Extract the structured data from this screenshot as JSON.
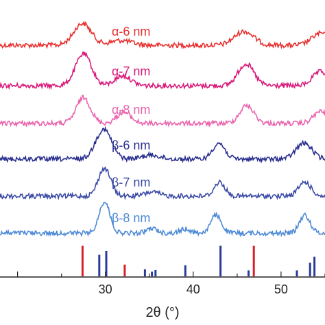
{
  "chart_data": {
    "type": "line",
    "title": "",
    "xlabel": "2θ (°)",
    "ylabel": "",
    "xlim": [
      18,
      55
    ],
    "xticks": [
      "30",
      "40",
      "50"
    ],
    "xtick_values": [
      30,
      40,
      50
    ],
    "grid": false,
    "legend": "inline labels",
    "series": [
      {
        "name": "α-6 nm",
        "color": "#e8302f",
        "peaks": [
          {
            "x": 27.4,
            "height": 0.55,
            "width": 1.0
          },
          {
            "x": 31.8,
            "height": 0.12,
            "width": 1.2
          },
          {
            "x": 45.8,
            "height": 0.35,
            "width": 1.1
          },
          {
            "x": 54.5,
            "height": 0.3,
            "width": 1.0
          }
        ]
      },
      {
        "name": "α-7 nm",
        "color": "#d9197a",
        "peaks": [
          {
            "x": 27.5,
            "height": 0.8,
            "width": 0.9
          },
          {
            "x": 32.0,
            "height": 0.25,
            "width": 0.9
          },
          {
            "x": 46.0,
            "height": 0.55,
            "width": 0.9
          },
          {
            "x": 54.5,
            "height": 0.35,
            "width": 0.9
          }
        ]
      },
      {
        "name": "α-8 nm",
        "color": "#ea62ad",
        "peaks": [
          {
            "x": 27.5,
            "height": 0.65,
            "width": 0.8
          },
          {
            "x": 32.1,
            "height": 0.28,
            "width": 0.8
          },
          {
            "x": 46.1,
            "height": 0.45,
            "width": 0.8
          },
          {
            "x": 54.5,
            "height": 0.3,
            "width": 0.8
          }
        ]
      },
      {
        "name": "β-6 nm",
        "color": "#2a2f8f",
        "peaks": [
          {
            "x": 29.8,
            "height": 0.75,
            "width": 0.9
          },
          {
            "x": 35.2,
            "height": 0.1,
            "width": 1.0
          },
          {
            "x": 42.9,
            "height": 0.4,
            "width": 0.7
          },
          {
            "x": 52.6,
            "height": 0.4,
            "width": 0.9
          }
        ]
      },
      {
        "name": "β-7 nm",
        "color": "#3a4aa6",
        "peaks": [
          {
            "x": 29.9,
            "height": 0.7,
            "width": 0.7
          },
          {
            "x": 35.3,
            "height": 0.1,
            "width": 0.8
          },
          {
            "x": 43.0,
            "height": 0.35,
            "width": 0.6
          },
          {
            "x": 52.7,
            "height": 0.35,
            "width": 0.7
          }
        ]
      },
      {
        "name": "β-8 nm",
        "color": "#4d8ad6",
        "peaks": [
          {
            "x": 29.9,
            "height": 0.8,
            "width": 0.6
          },
          {
            "x": 35.3,
            "height": 0.12,
            "width": 0.6
          },
          {
            "x": 39.1,
            "height": 0.1,
            "width": 0.6
          },
          {
            "x": 42.6,
            "height": 0.45,
            "width": 0.6
          },
          {
            "x": 52.7,
            "height": 0.45,
            "width": 0.6
          }
        ]
      }
    ],
    "reference_sticks": [
      {
        "x": 27.4,
        "intensity": 0.78,
        "color": "#d8202a"
      },
      {
        "x": 29.3,
        "intensity": 0.55,
        "color": "#2a3a9a"
      },
      {
        "x": 30.1,
        "intensity": 0.65,
        "color": "#2a3a9a"
      },
      {
        "x": 32.2,
        "intensity": 0.3,
        "color": "#d8202a"
      },
      {
        "x": 34.5,
        "intensity": 0.18,
        "color": "#2a3a9a"
      },
      {
        "x": 35.3,
        "intensity": 0.12,
        "color": "#2a3a9a"
      },
      {
        "x": 35.7,
        "intensity": 0.16,
        "color": "#2a3a9a"
      },
      {
        "x": 39.1,
        "intensity": 0.28,
        "color": "#2a3a9a"
      },
      {
        "x": 43.1,
        "intensity": 0.78,
        "color": "#2a3a9a"
      },
      {
        "x": 46.3,
        "intensity": 0.15,
        "color": "#2a3a9a"
      },
      {
        "x": 46.9,
        "intensity": 0.78,
        "color": "#d8202a"
      },
      {
        "x": 51.8,
        "intensity": 0.15,
        "color": "#2a3a9a"
      },
      {
        "x": 53.3,
        "intensity": 0.35,
        "color": "#2a3a9a"
      },
      {
        "x": 53.8,
        "intensity": 0.5,
        "color": "#2a3a9a"
      }
    ]
  }
}
